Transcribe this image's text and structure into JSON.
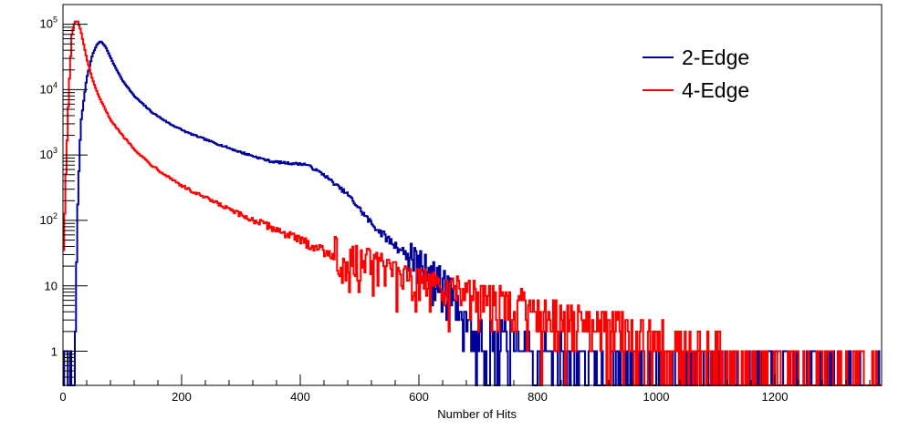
{
  "chart_data": {
    "type": "line",
    "title": "",
    "xlabel": "Number of Hits",
    "ylabel": "",
    "xlim": [
      0,
      1380
    ],
    "ylim": [
      0.3,
      200000
    ],
    "y_scale": "log",
    "grid": false,
    "legend_position": "top-right",
    "x_ticks": [
      0,
      200,
      400,
      600,
      800,
      1000,
      1200
    ],
    "x_tick_labels": [
      "0",
      "200",
      "400",
      "600",
      "800",
      "1000",
      "1200"
    ],
    "y_ticks": [
      1,
      10,
      100,
      1000,
      10000,
      100000
    ],
    "y_tick_labels": [
      {
        "base": "",
        "exp": "",
        "text": "1"
      },
      {
        "base": "",
        "exp": "",
        "text": "10"
      },
      {
        "base": "10",
        "exp": "2",
        "text": ""
      },
      {
        "base": "10",
        "exp": "3",
        "text": ""
      },
      {
        "base": "10",
        "exp": "4",
        "text": ""
      },
      {
        "base": "10",
        "exp": "5",
        "text": ""
      }
    ],
    "series": [
      {
        "name": "2-Edge",
        "color": "#000099",
        "points": [
          [
            0,
            0.3
          ],
          [
            20,
            0.3
          ],
          [
            24,
            100
          ],
          [
            30,
            3000
          ],
          [
            40,
            15000
          ],
          [
            50,
            35000
          ],
          [
            58,
            50000
          ],
          [
            64,
            55000
          ],
          [
            72,
            45000
          ],
          [
            85,
            25000
          ],
          [
            100,
            14000
          ],
          [
            120,
            8000
          ],
          [
            150,
            4500
          ],
          [
            180,
            3000
          ],
          [
            210,
            2200
          ],
          [
            250,
            1600
          ],
          [
            300,
            1100
          ],
          [
            350,
            800
          ],
          [
            380,
            750
          ],
          [
            410,
            720
          ],
          [
            440,
            500
          ],
          [
            460,
            350
          ],
          [
            480,
            250
          ],
          [
            500,
            150
          ],
          [
            520,
            90
          ],
          [
            550,
            50
          ],
          [
            580,
            30
          ],
          [
            600,
            20
          ],
          [
            630,
            12
          ],
          [
            650,
            8
          ],
          [
            670,
            4
          ],
          [
            700,
            2
          ],
          [
            750,
            1.5
          ],
          [
            800,
            1
          ],
          [
            850,
            0.8
          ],
          [
            900,
            0.7
          ],
          [
            950,
            0.6
          ],
          [
            1000,
            0.6
          ],
          [
            1100,
            0.5
          ],
          [
            1200,
            0.5
          ],
          [
            1300,
            0.4
          ],
          [
            1370,
            0.4
          ]
        ]
      },
      {
        "name": "4-Edge",
        "color": "#ff0000",
        "points": [
          [
            0,
            20
          ],
          [
            5,
            500
          ],
          [
            10,
            10000
          ],
          [
            15,
            70000
          ],
          [
            20,
            110000
          ],
          [
            25,
            110000
          ],
          [
            30,
            80000
          ],
          [
            40,
            30000
          ],
          [
            50,
            14000
          ],
          [
            60,
            8000
          ],
          [
            80,
            3500
          ],
          [
            100,
            2000
          ],
          [
            130,
            1000
          ],
          [
            150,
            700
          ],
          [
            180,
            450
          ],
          [
            210,
            300
          ],
          [
            250,
            200
          ],
          [
            300,
            120
          ],
          [
            350,
            80
          ],
          [
            400,
            50
          ],
          [
            450,
            32
          ],
          [
            500,
            22
          ],
          [
            550,
            15
          ],
          [
            600,
            11
          ],
          [
            650,
            8
          ],
          [
            700,
            6
          ],
          [
            750,
            5
          ],
          [
            800,
            4
          ],
          [
            850,
            3
          ],
          [
            900,
            2.5
          ],
          [
            950,
            2
          ],
          [
            1000,
            1.5
          ],
          [
            1050,
            1.2
          ],
          [
            1100,
            1
          ],
          [
            1150,
            0.8
          ],
          [
            1200,
            0.6
          ],
          [
            1250,
            0.5
          ],
          [
            1300,
            0.4
          ],
          [
            1370,
            0.3
          ]
        ]
      }
    ]
  }
}
